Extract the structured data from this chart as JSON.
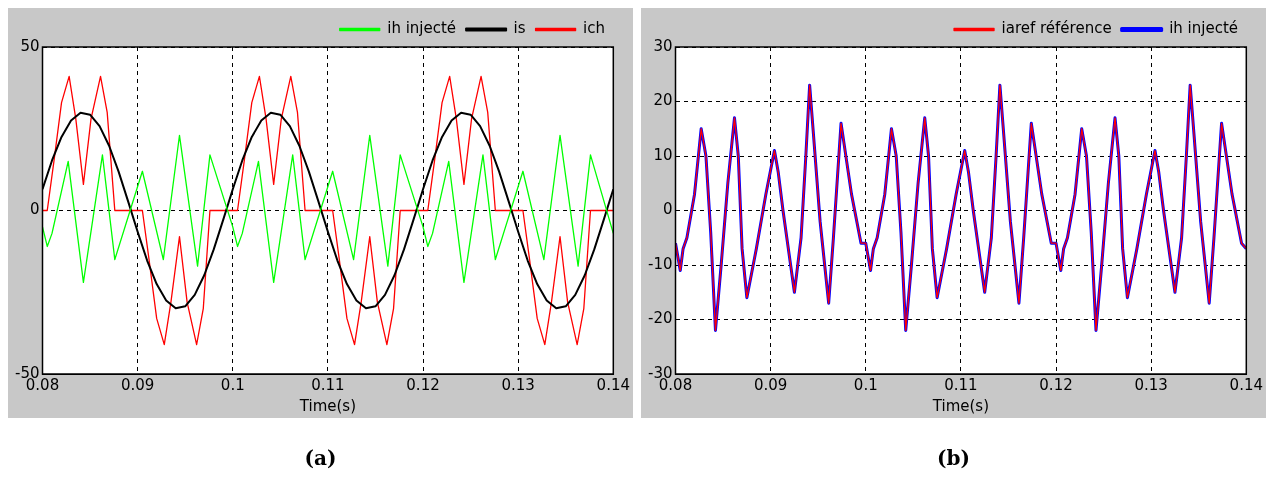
{
  "chart_data": [
    {
      "type": "line",
      "xlabel": "Time(s)",
      "annotations": [
        "(a)"
      ],
      "xlim": [
        0.08,
        0.14
      ],
      "xticks": [
        0.08,
        0.09,
        0.1,
        0.11,
        0.12,
        0.13,
        0.14
      ],
      "ylim": [
        -50,
        50
      ],
      "yticks": [
        -50,
        0,
        50
      ],
      "grid": true,
      "legend": "top right",
      "marker": "none",
      "line_style": "solid",
      "series": [
        {
          "name": "ich",
          "color": "#ff0000",
          "x": [
            0.08,
            0.0805,
            0.0812,
            0.082,
            0.0828,
            0.0835,
            0.0843,
            0.0851,
            0.0861,
            0.0868,
            0.0876,
            0.0905,
            0.0912,
            0.092,
            0.0928,
            0.0935,
            0.0944,
            0.0952,
            0.0962,
            0.0969,
            0.0976,
            0.1,
            0.1005,
            0.1012,
            0.102,
            0.1028,
            0.1035,
            0.1043,
            0.1051,
            0.1061,
            0.1068,
            0.1076,
            0.1105,
            0.1112,
            0.112,
            0.1128,
            0.1135,
            0.1144,
            0.1152,
            0.1162,
            0.1169,
            0.1176,
            0.12,
            0.1205,
            0.1212,
            0.122,
            0.1228,
            0.1235,
            0.1243,
            0.1251,
            0.1261,
            0.1268,
            0.1276,
            0.1305,
            0.1312,
            0.132,
            0.1328,
            0.1335,
            0.1344,
            0.1352,
            0.1362,
            0.1369,
            0.1376,
            0.14
          ],
          "values": [
            0,
            0,
            15,
            33,
            41,
            28,
            8,
            28,
            41,
            30,
            0,
            0,
            -15,
            -33,
            -41,
            -28,
            -8,
            -28,
            -41,
            -30,
            0,
            0,
            0,
            15,
            33,
            41,
            28,
            8,
            28,
            41,
            30,
            0,
            0,
            -15,
            -33,
            -41,
            -28,
            -8,
            -28,
            -41,
            -30,
            0,
            0,
            0,
            15,
            33,
            41,
            28,
            8,
            28,
            41,
            30,
            0,
            0,
            -15,
            -33,
            -41,
            -28,
            -8,
            -28,
            -41,
            -30,
            0,
            0
          ]
        },
        {
          "name": "is",
          "color": "#000000",
          "x": [
            0.08,
            0.081,
            0.082,
            0.083,
            0.084,
            0.085,
            0.086,
            0.087,
            0.088,
            0.089,
            0.09,
            0.091,
            0.092,
            0.093,
            0.094,
            0.095,
            0.096,
            0.097,
            0.098,
            0.099,
            0.1,
            0.101,
            0.102,
            0.103,
            0.104,
            0.105,
            0.106,
            0.107,
            0.108,
            0.109,
            0.11,
            0.111,
            0.112,
            0.113,
            0.114,
            0.115,
            0.116,
            0.117,
            0.118,
            0.119,
            0.12,
            0.121,
            0.122,
            0.123,
            0.124,
            0.125,
            0.126,
            0.127,
            0.128,
            0.129,
            0.13,
            0.131,
            0.132,
            0.133,
            0.134,
            0.135,
            0.136,
            0.137,
            0.138,
            0.139,
            0.14
          ],
          "values": [
            6.5,
            15.3,
            22.5,
            27.5,
            29.9,
            29.3,
            25.8,
            19.8,
            11.9,
            2.8,
            -6.5,
            -15.3,
            -22.5,
            -27.5,
            -29.9,
            -29.3,
            -25.8,
            -19.8,
            -11.9,
            -2.8,
            6.5,
            15.3,
            22.5,
            27.5,
            29.9,
            29.3,
            25.8,
            19.8,
            11.9,
            2.8,
            -6.5,
            -15.3,
            -22.5,
            -27.5,
            -29.9,
            -29.3,
            -25.8,
            -19.8,
            -11.9,
            -2.8,
            6.5,
            15.3,
            22.5,
            27.5,
            29.9,
            29.3,
            25.8,
            19.8,
            11.9,
            2.8,
            -6.5,
            -15.3,
            -22.5,
            -27.5,
            -29.9,
            -29.3,
            -25.8,
            -19.8,
            -11.9,
            -2.8,
            6.5
          ]
        },
        {
          "name": "ih injecté",
          "color": "#00ff00",
          "x": [
            0.08,
            0.0805,
            0.081,
            0.0827,
            0.0843,
            0.0863,
            0.0876,
            0.0905,
            0.0927,
            0.0944,
            0.0963,
            0.0976,
            0.1,
            0.1005,
            0.101,
            0.1027,
            0.1043,
            0.1063,
            0.1076,
            0.1105,
            0.1127,
            0.1144,
            0.1163,
            0.1176,
            0.12,
            0.1205,
            0.121,
            0.1227,
            0.1243,
            0.1263,
            0.1276,
            0.1305,
            0.1327,
            0.1344,
            0.1363,
            0.1376,
            0.14
          ],
          "values": [
            -5,
            -11,
            -7,
            15,
            -22,
            17,
            -15,
            12,
            -15,
            23,
            -17,
            17,
            -5,
            -11,
            -7,
            15,
            -22,
            17,
            -15,
            12,
            -15,
            23,
            -17,
            17,
            -5,
            -11,
            -7,
            15,
            -22,
            17,
            -15,
            12,
            -15,
            23,
            -17,
            17,
            -7
          ]
        }
      ]
    },
    {
      "type": "line",
      "xlabel": "Time(s)",
      "annotations": [
        "(b)"
      ],
      "xlim": [
        0.08,
        0.14
      ],
      "xticks": [
        0.08,
        0.09,
        0.1,
        0.11,
        0.12,
        0.13,
        0.14
      ],
      "ylim": [
        -30,
        30
      ],
      "yticks": [
        -30,
        -20,
        -10,
        0,
        10,
        20,
        30
      ],
      "grid": true,
      "legend": "top right",
      "marker": "none",
      "line_style": "solid",
      "series": [
        {
          "name": "ih injecté",
          "color": "#0000ff",
          "x": [
            0.08,
            0.0805,
            0.0808,
            0.0812,
            0.082,
            0.0827,
            0.0832,
            0.0837,
            0.0842,
            0.0848,
            0.0855,
            0.0862,
            0.0866,
            0.087,
            0.0875,
            0.0885,
            0.0895,
            0.0904,
            0.0908,
            0.0913,
            0.0925,
            0.0932,
            0.0937,
            0.0941,
            0.0945,
            0.0952,
            0.0961,
            0.0966,
            0.0974,
            0.0985,
            0.0995,
            0.1,
            0.1005,
            0.1008,
            0.1012,
            0.102,
            0.1027,
            0.1032,
            0.1037,
            0.1042,
            0.1048,
            0.1055,
            0.1062,
            0.1066,
            0.107,
            0.1075,
            0.1085,
            0.1095,
            0.1104,
            0.1108,
            0.1113,
            0.1125,
            0.1132,
            0.1137,
            0.1141,
            0.1145,
            0.1152,
            0.1161,
            0.1166,
            0.1174,
            0.1185,
            0.1195,
            0.12,
            0.1205,
            0.1208,
            0.1212,
            0.122,
            0.1227,
            0.1232,
            0.1237,
            0.1242,
            0.1248,
            0.1255,
            0.1262,
            0.1266,
            0.127,
            0.1275,
            0.1285,
            0.1295,
            0.1304,
            0.1308,
            0.1313,
            0.1325,
            0.1332,
            0.1337,
            0.1341,
            0.1345,
            0.1352,
            0.1361,
            0.1366,
            0.1374,
            0.1385,
            0.1395,
            0.14
          ],
          "values": [
            -6,
            -11,
            -7,
            -5,
            3,
            15,
            10,
            -4,
            -22,
            -10,
            5,
            17,
            10,
            -7,
            -16,
            -7,
            3,
            11,
            7,
            0,
            -15,
            -5,
            10,
            23,
            14,
            -2,
            -17,
            -5,
            16,
            3,
            -6,
            -6,
            -11,
            -7,
            -5,
            3,
            15,
            10,
            -4,
            -22,
            -10,
            5,
            17,
            10,
            -7,
            -16,
            -7,
            3,
            11,
            7,
            0,
            -15,
            -5,
            10,
            23,
            14,
            -2,
            -17,
            -5,
            16,
            3,
            -6,
            -6,
            -11,
            -7,
            -5,
            3,
            15,
            10,
            -4,
            -22,
            -10,
            5,
            17,
            10,
            -7,
            -16,
            -7,
            3,
            11,
            7,
            0,
            -15,
            -5,
            10,
            23,
            14,
            -2,
            -17,
            -5,
            16,
            3,
            -6,
            -7
          ]
        },
        {
          "name": "iaref référence",
          "color": "#ff0000",
          "x": [
            0.08,
            0.0805,
            0.0808,
            0.0812,
            0.082,
            0.0827,
            0.0832,
            0.0837,
            0.0842,
            0.0848,
            0.0855,
            0.0862,
            0.0866,
            0.087,
            0.0875,
            0.0885,
            0.0895,
            0.0904,
            0.0908,
            0.0913,
            0.0925,
            0.0932,
            0.0937,
            0.0941,
            0.0945,
            0.0952,
            0.0961,
            0.0966,
            0.0974,
            0.0985,
            0.0995,
            0.1,
            0.1005,
            0.1008,
            0.1012,
            0.102,
            0.1027,
            0.1032,
            0.1037,
            0.1042,
            0.1048,
            0.1055,
            0.1062,
            0.1066,
            0.107,
            0.1075,
            0.1085,
            0.1095,
            0.1104,
            0.1108,
            0.1113,
            0.1125,
            0.1132,
            0.1137,
            0.1141,
            0.1145,
            0.1152,
            0.1161,
            0.1166,
            0.1174,
            0.1185,
            0.1195,
            0.12,
            0.1205,
            0.1208,
            0.1212,
            0.122,
            0.1227,
            0.1232,
            0.1237,
            0.1242,
            0.1248,
            0.1255,
            0.1262,
            0.1266,
            0.127,
            0.1275,
            0.1285,
            0.1295,
            0.1304,
            0.1308,
            0.1313,
            0.1325,
            0.1332,
            0.1337,
            0.1341,
            0.1345,
            0.1352,
            0.1361,
            0.1366,
            0.1374,
            0.1385,
            0.1395,
            0.14
          ],
          "values": [
            -6,
            -11,
            -7,
            -5,
            3,
            15,
            10,
            -4,
            -22,
            -10,
            5,
            17,
            10,
            -7,
            -16,
            -7,
            3,
            11,
            7,
            0,
            -15,
            -5,
            10,
            23,
            14,
            -2,
            -17,
            -5,
            16,
            3,
            -6,
            -6,
            -11,
            -7,
            -5,
            3,
            15,
            10,
            -4,
            -22,
            -10,
            5,
            17,
            10,
            -7,
            -16,
            -7,
            3,
            11,
            7,
            0,
            -15,
            -5,
            10,
            23,
            14,
            -2,
            -17,
            -5,
            16,
            3,
            -6,
            -6,
            -11,
            -7,
            -5,
            3,
            15,
            10,
            -4,
            -22,
            -10,
            5,
            17,
            10,
            -7,
            -16,
            -7,
            3,
            11,
            7,
            0,
            -15,
            -5,
            10,
            23,
            14,
            -2,
            -17,
            -5,
            16,
            3,
            -6,
            -7
          ]
        }
      ]
    }
  ]
}
